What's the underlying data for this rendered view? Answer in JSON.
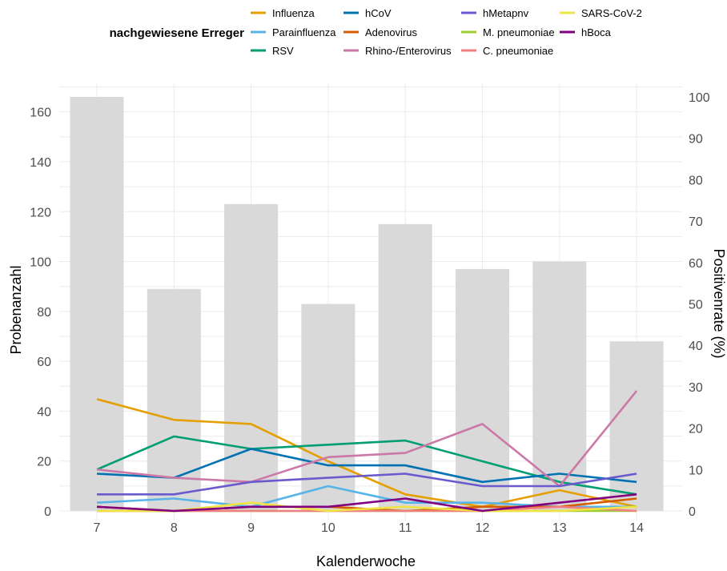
{
  "chart_data": {
    "type": "bar",
    "xlabel": "Kalenderwoche",
    "ylabel": "Probenanzahl",
    "y2label": "Positivenrate (%)",
    "categories": [
      "7",
      "8",
      "9",
      "10",
      "11",
      "12",
      "13",
      "14"
    ],
    "bars": {
      "name": "Probenanzahl",
      "values": [
        166,
        89,
        123,
        83,
        115,
        97,
        100,
        68
      ],
      "color": "#d9d9d9"
    },
    "ylim": [
      0,
      166
    ],
    "yticks": [
      0,
      20,
      40,
      60,
      80,
      100,
      120,
      140,
      160
    ],
    "y2lim": [
      0,
      100
    ],
    "y2ticks": [
      0,
      10,
      20,
      30,
      40,
      50,
      60,
      70,
      80,
      90,
      100
    ],
    "grid": true,
    "legend": {
      "title": "nachgewiesene Erreger",
      "position": "top"
    },
    "series": [
      {
        "name": "Influenza",
        "color": "#E69F00",
        "values": [
          27,
          22,
          21,
          12,
          4,
          1,
          5,
          1
        ]
      },
      {
        "name": "Parainfluenza",
        "color": "#56B4E9",
        "values": [
          2,
          3,
          1,
          6,
          2,
          2,
          1,
          1
        ]
      },
      {
        "name": "RSV",
        "color": "#009E73",
        "values": [
          10,
          18,
          15,
          16,
          17,
          12,
          7,
          4
        ]
      },
      {
        "name": "hCoV",
        "color": "#0072B2",
        "values": [
          9,
          8,
          15,
          11,
          11,
          7,
          9,
          7
        ]
      },
      {
        "name": "Adenovirus",
        "color": "#D55E00",
        "values": [
          1,
          0,
          1,
          1,
          0,
          1,
          1,
          3
        ]
      },
      {
        "name": "Rhino-/Enterovirus",
        "color": "#CC79A7",
        "values": [
          10,
          8,
          7,
          13,
          14,
          21,
          6,
          29
        ]
      },
      {
        "name": "hMetapnv",
        "color": "#6A5ACD",
        "values": [
          4,
          4,
          7,
          8,
          9,
          6,
          6,
          9
        ]
      },
      {
        "name": "M. pneumoniae",
        "color": "#9ACD32",
        "values": [
          0,
          0,
          0,
          0,
          0,
          0,
          0,
          0
        ]
      },
      {
        "name": "C. pneumoniae",
        "color": "#F08080",
        "values": [
          0,
          0,
          0,
          0,
          0,
          0,
          1,
          0
        ]
      },
      {
        "name": "SARS-CoV-2",
        "color": "#F0E442",
        "values": [
          0,
          0,
          2,
          0,
          1,
          0,
          0,
          1
        ]
      },
      {
        "name": "hBoca",
        "color": "#800080",
        "values": [
          1,
          0,
          1,
          1,
          3,
          0,
          2,
          4
        ]
      }
    ]
  }
}
